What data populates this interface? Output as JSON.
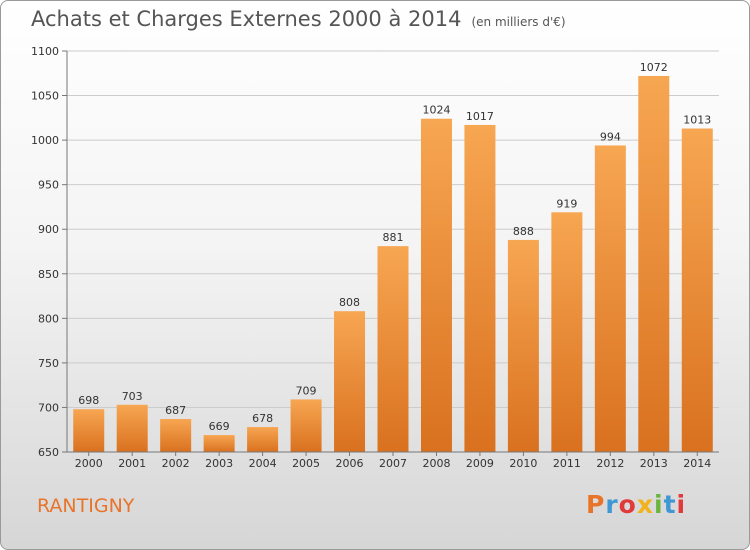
{
  "title": "Achats et Charges Externes 2000 à 2014",
  "unit_note": "(en milliers d'€)",
  "city": "RANTIGNY",
  "logo": {
    "text": "Proxiti",
    "letters": [
      "P",
      "r",
      "o",
      "x",
      "i",
      "t",
      "i"
    ]
  },
  "colors": {
    "bar_top": "#f7a652",
    "bar_bottom": "#d9711f",
    "grid": "#cccccc",
    "city": "#e8742a"
  },
  "chart_data": {
    "type": "bar",
    "categories": [
      "2000",
      "2001",
      "2002",
      "2003",
      "2004",
      "2005",
      "2006",
      "2007",
      "2008",
      "2009",
      "2010",
      "2011",
      "2012",
      "2013",
      "2014"
    ],
    "values": [
      698,
      703,
      687,
      669,
      678,
      709,
      808,
      881,
      1024,
      1017,
      888,
      919,
      994,
      1072,
      1013
    ],
    "title": "Achats et Charges Externes 2000 à 2014",
    "ylim": [
      650,
      1100
    ],
    "yticks": [
      650,
      700,
      750,
      800,
      850,
      900,
      950,
      1000,
      1050,
      1100
    ],
    "grid": true,
    "data_labels": true
  }
}
